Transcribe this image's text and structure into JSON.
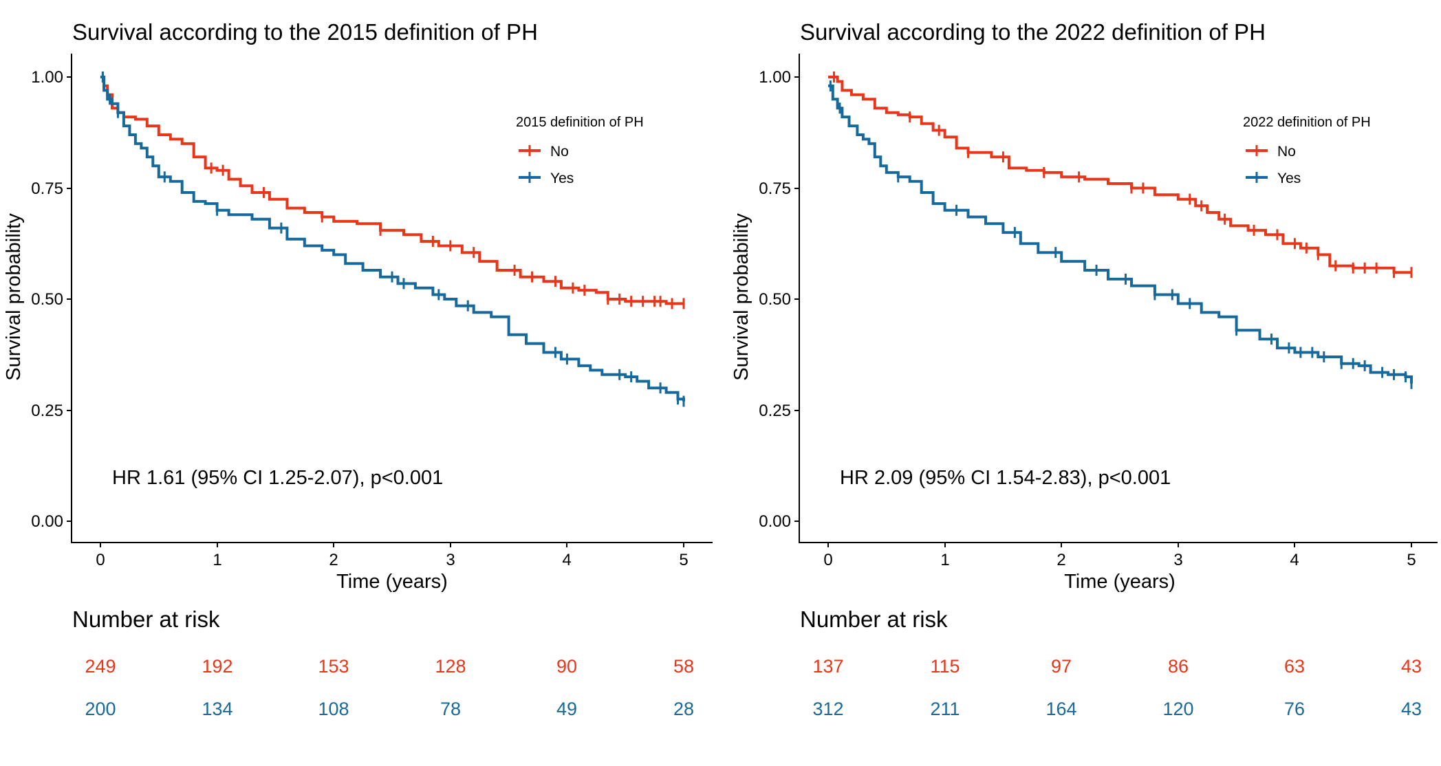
{
  "colors": {
    "no": "#e8361b",
    "yes": "#16699a"
  },
  "chart_data": [
    {
      "type": "line",
      "title": "Survival according to the 2015 definition of PH",
      "xlabel": "Time (years)",
      "ylabel": "Survival probability",
      "xlim": [
        0,
        5
      ],
      "ylim": [
        0,
        1
      ],
      "x_ticks": [
        0,
        1,
        2,
        3,
        4,
        5
      ],
      "y_ticks": [
        "0.00",
        "0.25",
        "0.50",
        "0.75",
        "1.00"
      ],
      "grid": false,
      "legend": {
        "title": "2015 definition of PH",
        "position": "top-right"
      },
      "annotation": "HR 1.61 (95% CI 1.25-2.07), p<0.001",
      "series": [
        {
          "name": "No",
          "color": "#e8361b",
          "x": [
            0,
            0.03,
            0.06,
            0.1,
            0.15,
            0.2,
            0.3,
            0.4,
            0.5,
            0.6,
            0.7,
            0.8,
            0.9,
            1.0,
            1.1,
            1.2,
            1.3,
            1.45,
            1.6,
            1.75,
            1.9,
            2.0,
            2.2,
            2.4,
            2.6,
            2.75,
            2.9,
            3.1,
            3.25,
            3.4,
            3.6,
            3.8,
            3.95,
            4.1,
            4.25,
            4.35,
            4.5,
            4.7,
            4.85,
            5.0
          ],
          "y": [
            1.0,
            0.98,
            0.96,
            0.93,
            0.92,
            0.91,
            0.905,
            0.89,
            0.87,
            0.86,
            0.85,
            0.82,
            0.795,
            0.79,
            0.77,
            0.755,
            0.74,
            0.725,
            0.705,
            0.695,
            0.685,
            0.675,
            0.67,
            0.655,
            0.645,
            0.63,
            0.62,
            0.605,
            0.585,
            0.565,
            0.55,
            0.54,
            0.525,
            0.52,
            0.515,
            0.5,
            0.495,
            0.495,
            0.49,
            0.49
          ],
          "censor_x": [
            0.02,
            0.95,
            1.05,
            1.4,
            1.9,
            2.4,
            2.85,
            3.0,
            3.2,
            3.55,
            3.7,
            3.9,
            4.05,
            4.15,
            4.35,
            4.45,
            4.55,
            4.65,
            4.75,
            4.8,
            4.9,
            5.0
          ]
        },
        {
          "name": "Yes",
          "color": "#16699a",
          "x": [
            0,
            0.03,
            0.06,
            0.1,
            0.15,
            0.2,
            0.25,
            0.3,
            0.35,
            0.4,
            0.45,
            0.5,
            0.6,
            0.7,
            0.8,
            0.9,
            1.0,
            1.1,
            1.3,
            1.45,
            1.6,
            1.75,
            1.9,
            2.0,
            2.1,
            2.25,
            2.4,
            2.55,
            2.7,
            2.85,
            2.95,
            3.05,
            3.2,
            3.35,
            3.5,
            3.65,
            3.8,
            3.95,
            4.1,
            4.2,
            4.3,
            4.5,
            4.6,
            4.7,
            4.85,
            4.95,
            5.0
          ],
          "y": [
            1.0,
            0.97,
            0.95,
            0.94,
            0.92,
            0.89,
            0.87,
            0.85,
            0.84,
            0.82,
            0.8,
            0.775,
            0.765,
            0.74,
            0.72,
            0.715,
            0.7,
            0.69,
            0.68,
            0.66,
            0.635,
            0.62,
            0.61,
            0.6,
            0.58,
            0.565,
            0.55,
            0.535,
            0.525,
            0.51,
            0.5,
            0.485,
            0.47,
            0.46,
            0.42,
            0.4,
            0.38,
            0.365,
            0.35,
            0.34,
            0.33,
            0.325,
            0.315,
            0.3,
            0.29,
            0.275,
            0.27
          ],
          "censor_x": [
            0.02,
            0.08,
            0.15,
            0.55,
            1.0,
            1.55,
            2.5,
            2.6,
            2.9,
            3.15,
            3.9,
            4.0,
            4.45,
            4.55,
            4.8,
            4.95,
            5.0
          ]
        }
      ],
      "risk_table": {
        "title": "Number at risk",
        "rows": [
          {
            "name": "No",
            "values": [
              249,
              192,
              153,
              128,
              90,
              58
            ]
          },
          {
            "name": "Yes",
            "values": [
              200,
              134,
              108,
              78,
              49,
              28
            ]
          }
        ]
      }
    },
    {
      "type": "line",
      "title": "Survival according to the 2022 definition of PH",
      "xlabel": "Time (years)",
      "ylabel": "Survival probability",
      "xlim": [
        0,
        5
      ],
      "ylim": [
        0,
        1
      ],
      "x_ticks": [
        0,
        1,
        2,
        3,
        4,
        5
      ],
      "y_ticks": [
        "0.00",
        "0.25",
        "0.50",
        "0.75",
        "1.00"
      ],
      "grid": false,
      "legend": {
        "title": "2022 definition of PH",
        "position": "top-right"
      },
      "annotation": "HR 2.09 (95% CI 1.54-2.83), p<0.001",
      "series": [
        {
          "name": "No",
          "color": "#e8361b",
          "x": [
            0,
            0.08,
            0.12,
            0.2,
            0.3,
            0.4,
            0.5,
            0.6,
            0.7,
            0.8,
            0.9,
            1.0,
            1.1,
            1.2,
            1.4,
            1.55,
            1.7,
            1.85,
            2.0,
            2.2,
            2.4,
            2.6,
            2.8,
            3.0,
            3.15,
            3.25,
            3.35,
            3.45,
            3.6,
            3.75,
            3.9,
            4.05,
            4.2,
            4.3,
            4.5,
            4.7,
            4.85,
            5.0
          ],
          "y": [
            1.0,
            0.99,
            0.97,
            0.96,
            0.95,
            0.93,
            0.92,
            0.915,
            0.91,
            0.895,
            0.88,
            0.865,
            0.84,
            0.83,
            0.82,
            0.795,
            0.79,
            0.785,
            0.775,
            0.77,
            0.76,
            0.75,
            0.735,
            0.725,
            0.71,
            0.695,
            0.68,
            0.665,
            0.655,
            0.645,
            0.625,
            0.615,
            0.6,
            0.575,
            0.57,
            0.57,
            0.56,
            0.56
          ],
          "censor_x": [
            0.05,
            0.7,
            0.95,
            1.2,
            1.5,
            1.85,
            2.15,
            2.6,
            2.7,
            3.1,
            3.2,
            3.4,
            3.65,
            3.85,
            4.0,
            4.1,
            4.2,
            4.35,
            4.5,
            4.6,
            4.7,
            4.85,
            5.0
          ]
        },
        {
          "name": "Yes",
          "color": "#16699a",
          "x": [
            0,
            0.04,
            0.08,
            0.12,
            0.18,
            0.25,
            0.3,
            0.35,
            0.4,
            0.45,
            0.5,
            0.6,
            0.7,
            0.8,
            0.9,
            1.0,
            1.2,
            1.35,
            1.5,
            1.65,
            1.8,
            2.0,
            2.2,
            2.4,
            2.6,
            2.8,
            3.0,
            3.2,
            3.35,
            3.5,
            3.7,
            3.85,
            4.0,
            4.2,
            4.4,
            4.55,
            4.65,
            4.8,
            4.95,
            5.0
          ],
          "y": [
            0.98,
            0.95,
            0.93,
            0.91,
            0.89,
            0.87,
            0.86,
            0.85,
            0.82,
            0.8,
            0.785,
            0.775,
            0.765,
            0.74,
            0.715,
            0.7,
            0.685,
            0.67,
            0.65,
            0.625,
            0.605,
            0.585,
            0.565,
            0.545,
            0.53,
            0.51,
            0.49,
            0.47,
            0.46,
            0.43,
            0.41,
            0.39,
            0.38,
            0.37,
            0.355,
            0.35,
            0.335,
            0.33,
            0.325,
            0.31
          ],
          "censor_x": [
            0.02,
            0.1,
            0.6,
            1.1,
            1.6,
            1.95,
            2.3,
            2.55,
            2.8,
            2.95,
            3.1,
            3.5,
            3.8,
            3.95,
            4.05,
            4.15,
            4.25,
            4.4,
            4.5,
            4.6,
            4.75,
            4.85,
            4.95,
            5.0
          ]
        }
      ],
      "risk_table": {
        "title": "Number at risk",
        "rows": [
          {
            "name": "No",
            "values": [
              137,
              115,
              97,
              86,
              63,
              43
            ]
          },
          {
            "name": "Yes",
            "values": [
              312,
              211,
              164,
              120,
              76,
              43
            ]
          }
        ]
      }
    }
  ]
}
